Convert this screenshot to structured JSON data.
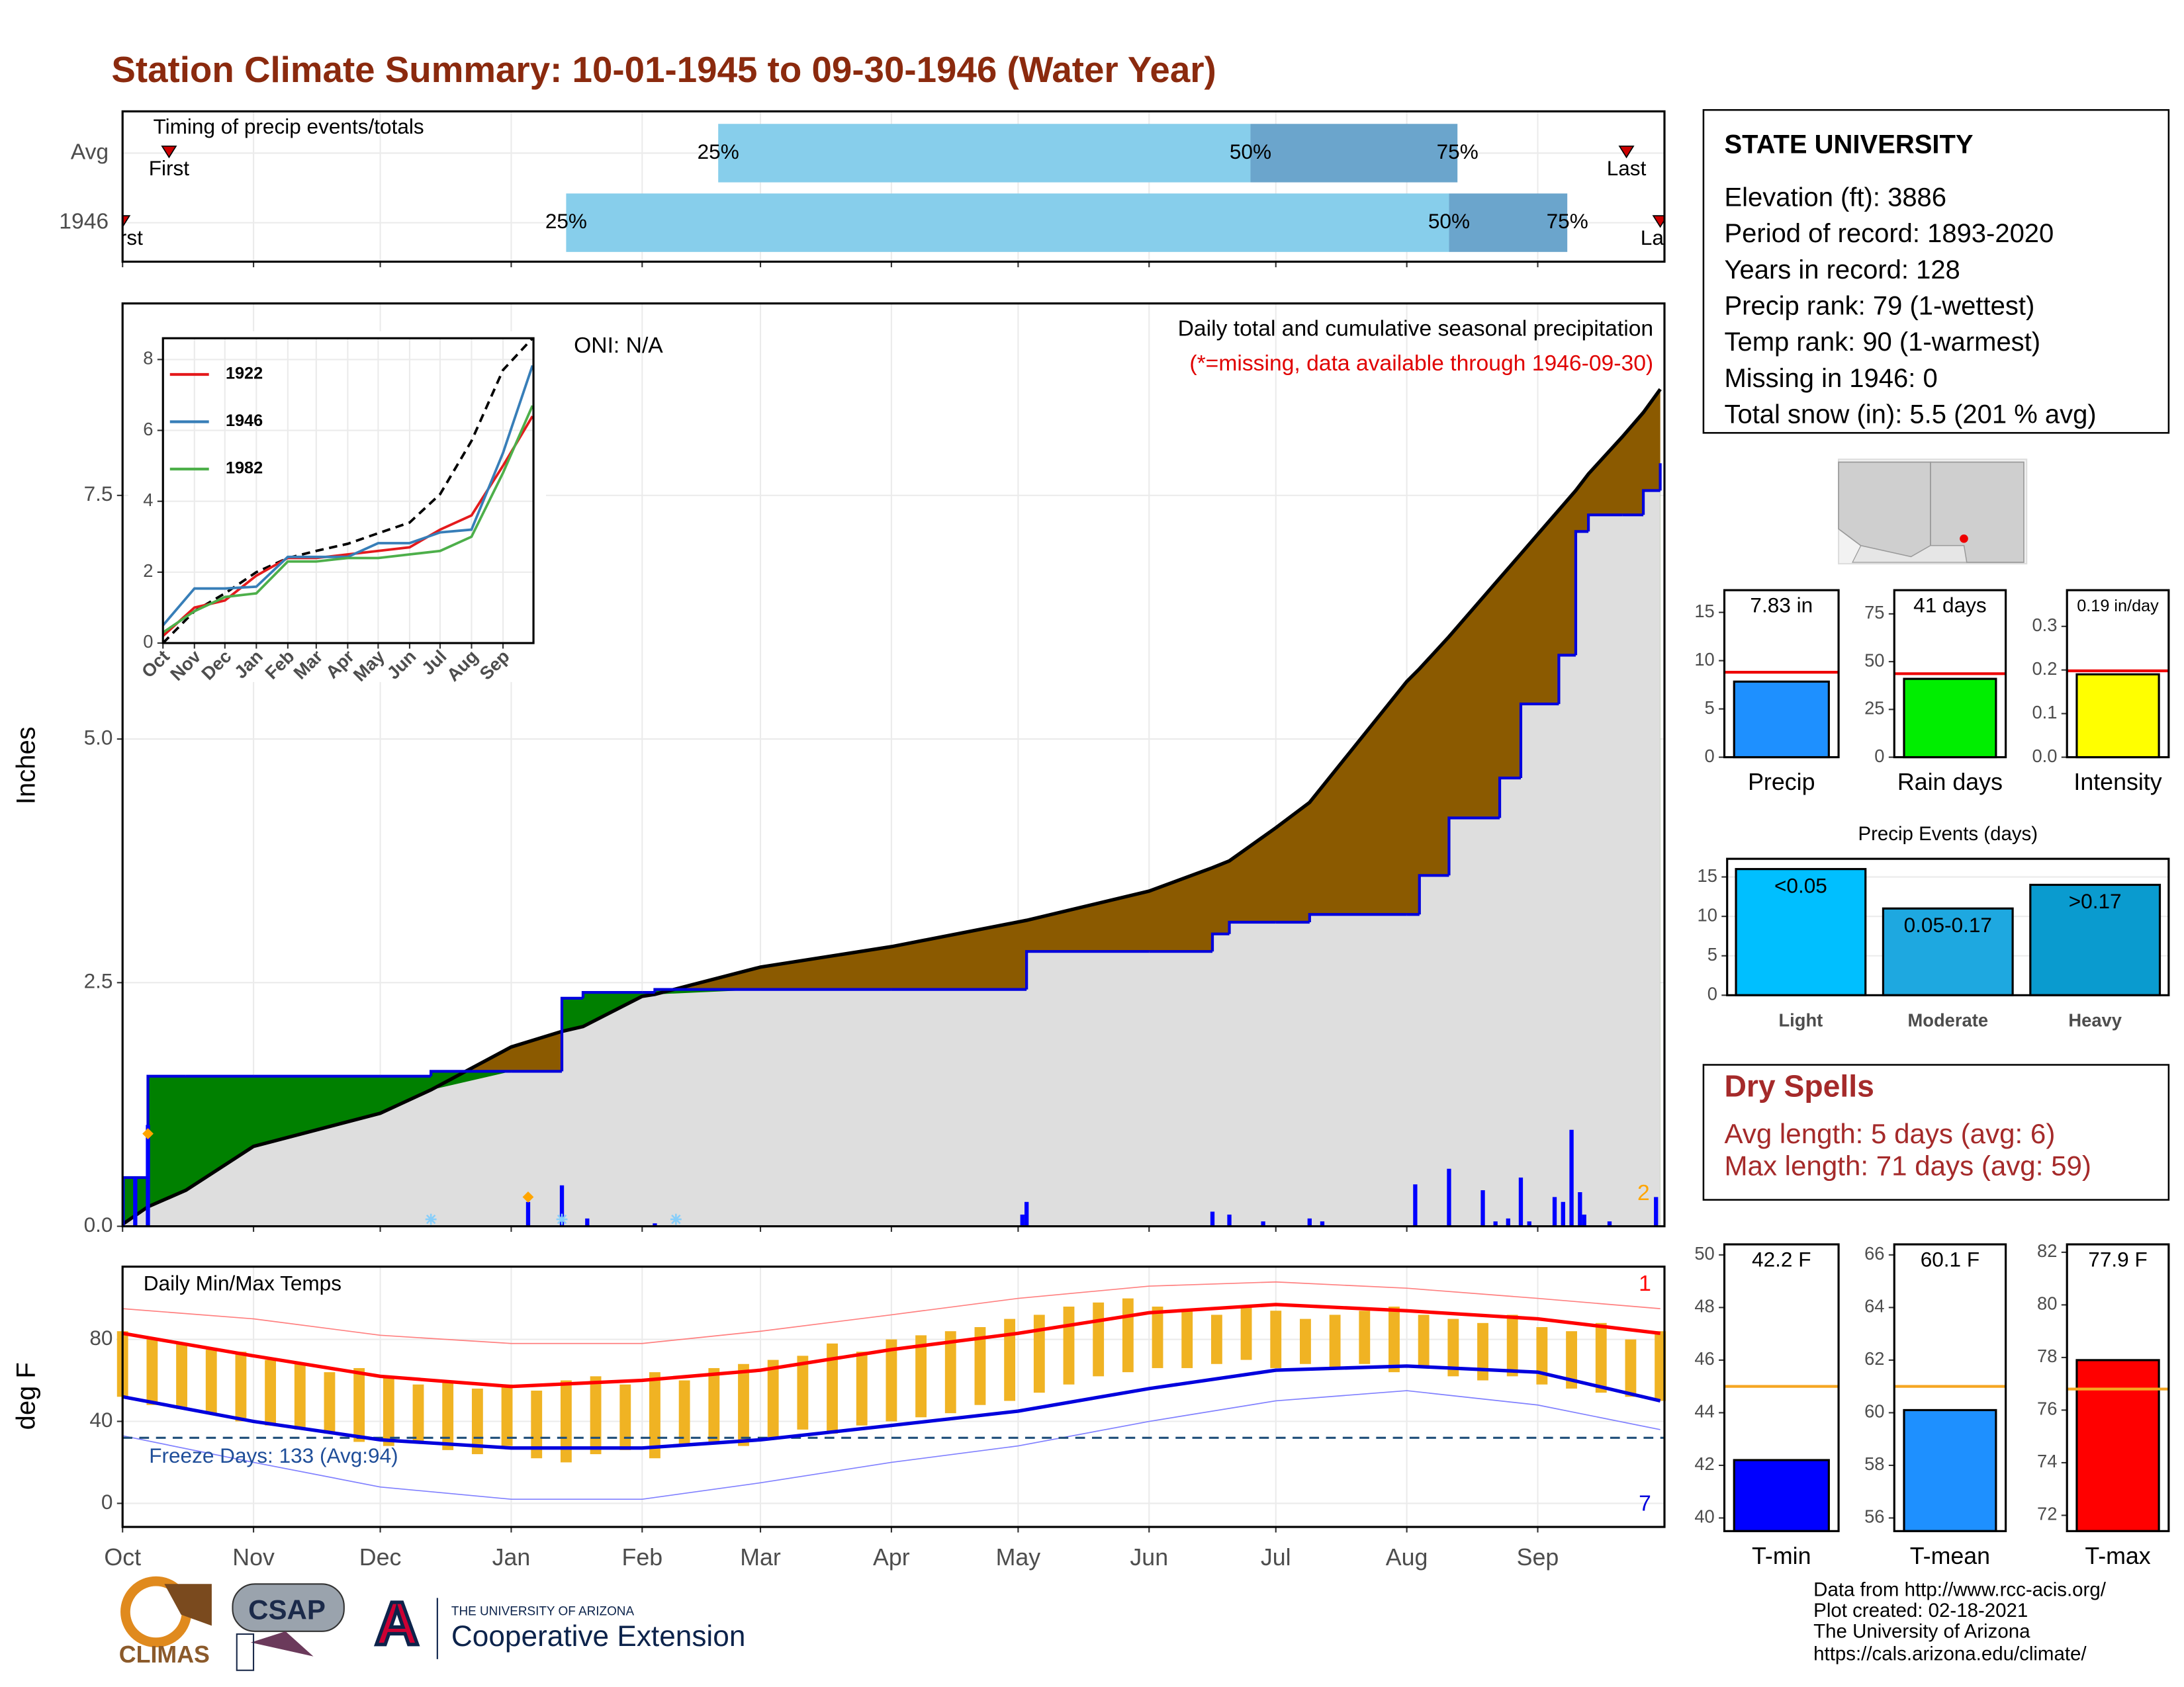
{
  "title": "Station Climate Summary: 10-01-1945 to 09-30-1946 (Water Year)",
  "chart_data": [
    {
      "type": "timing",
      "annotation": "Timing of precip events/totals",
      "xlim": [
        0,
        365
      ],
      "xticks": [
        0,
        31,
        61,
        92,
        123,
        151,
        182,
        212,
        243,
        273,
        304,
        335
      ],
      "point_labels": [
        "First",
        "25%",
        "50%",
        "75%",
        "Last"
      ],
      "colors": [
        "#87ceeb",
        "#6ba5cc"
      ],
      "marker_color": "#cc0000",
      "rows": [
        {
          "name": "Avg",
          "values": [
            11,
            141,
            267,
            316,
            356
          ]
        },
        {
          "name": "1946",
          "values": [
            0,
            105,
            314,
            342,
            364
          ]
        }
      ]
    },
    {
      "type": "cumulative",
      "ylabel": "Inches",
      "annotations": [
        "ONI: N/A",
        "Daily total and cumulative seasonal precipitation",
        "(*=missing, data available through 1946-09-30)",
        "2"
      ],
      "xlim": [
        0,
        365
      ],
      "ylim": [
        0,
        9.47
      ],
      "xticks": [
        0,
        31,
        61,
        92,
        123,
        151,
        182,
        212,
        243,
        273,
        304,
        335
      ],
      "yticks": [
        {
          "value": 0,
          "label": "0.0"
        },
        {
          "value": 2.5,
          "label": "2.5"
        },
        {
          "value": 5,
          "label": "5.0"
        },
        {
          "value": 7.5,
          "label": "7.5"
        }
      ],
      "grid": true,
      "x": [
        0,
        6,
        15,
        31,
        61,
        73,
        92,
        104,
        109,
        123,
        126,
        151,
        182,
        214,
        243,
        258,
        262,
        273,
        281,
        304,
        307,
        314,
        326,
        331,
        335,
        340,
        344,
        347,
        355,
        360,
        364
      ],
      "series": [
        {
          "color": "#000000",
          "values": [
            0.02,
            0.2,
            0.37,
            0.82,
            1.16,
            1.4,
            1.84,
            2.0,
            2.05,
            2.36,
            2.38,
            2.66,
            2.87,
            3.14,
            3.44,
            3.68,
            3.75,
            4.09,
            4.35,
            5.59,
            5.72,
            6.05,
            6.65,
            6.9,
            7.1,
            7.35,
            7.55,
            7.72,
            8.1,
            8.35,
            8.59
          ]
        },
        {
          "color": "#0000dd",
          "values": [
            0.5,
            1.54,
            1.54,
            1.54,
            1.54,
            1.59,
            1.59,
            2.34,
            2.4,
            2.4,
            2.43,
            2.43,
            2.43,
            2.82,
            2.82,
            3.0,
            3.12,
            3.12,
            3.2,
            3.2,
            3.6,
            4.19,
            4.6,
            5.36,
            5.36,
            5.86,
            7.13,
            7.3,
            7.3,
            7.55,
            7.83
          ]
        }
      ],
      "fill_colors": [
        "#8b5a00",
        "#008000",
        "#dedede"
      ],
      "daily": {
        "color": "#0000ff",
        "x": [
          0,
          3,
          6,
          96,
          104,
          110,
          126,
          213,
          214,
          258,
          262,
          270,
          281,
          284,
          306,
          314,
          322,
          325,
          328,
          331,
          333,
          339,
          341,
          343,
          345,
          346,
          352,
          363
        ],
        "values": [
          0.5,
          0.5,
          1.04,
          0.25,
          0.42,
          0.08,
          0.03,
          0.12,
          0.25,
          0.15,
          0.12,
          0.05,
          0.08,
          0.05,
          0.43,
          0.59,
          0.37,
          0.05,
          0.08,
          0.5,
          0.05,
          0.3,
          0.25,
          0.99,
          0.35,
          0.12,
          0.05,
          0.3
        ]
      },
      "snow_days": [
        73,
        104,
        131
      ],
      "snow_color": "#87cefa",
      "extremes": {
        "color": "#ffa500",
        "x": [
          6,
          96
        ],
        "values": [
          0.95,
          0.3
        ]
      }
    },
    {
      "type": "inset",
      "xlim": [
        0,
        365
      ],
      "ylim": [
        0,
        8.6
      ],
      "xticks": [
        {
          "value": 0,
          "label": "Oct"
        },
        {
          "value": 31,
          "label": "Nov"
        },
        {
          "value": 61,
          "label": "Dec"
        },
        {
          "value": 92,
          "label": "Jan"
        },
        {
          "value": 123,
          "label": "Feb"
        },
        {
          "value": 151,
          "label": "Mar"
        },
        {
          "value": 182,
          "label": "Apr"
        },
        {
          "value": 212,
          "label": "May"
        },
        {
          "value": 243,
          "label": "Jun"
        },
        {
          "value": 273,
          "label": "Jul"
        },
        {
          "value": 304,
          "label": "Aug"
        },
        {
          "value": 335,
          "label": "Sep"
        }
      ],
      "yticks": [
        0,
        2,
        4,
        6,
        8
      ],
      "grid": true,
      "x": [
        0,
        31,
        61,
        92,
        123,
        151,
        182,
        212,
        243,
        273,
        304,
        335,
        364
      ],
      "average": {
        "color": "#000000",
        "values": [
          0,
          0.9,
          1.4,
          2.0,
          2.4,
          2.6,
          2.8,
          3.1,
          3.4,
          4.2,
          5.7,
          7.7,
          8.6
        ]
      },
      "series": [
        {
          "name": "1922",
          "color": "#e41a1c",
          "values": [
            0.2,
            1.0,
            1.2,
            1.9,
            2.4,
            2.4,
            2.5,
            2.6,
            2.7,
            3.2,
            3.6,
            5.0,
            6.4
          ]
        },
        {
          "name": "1946",
          "color": "#377eb8",
          "values": [
            0.5,
            1.54,
            1.54,
            1.59,
            2.43,
            2.43,
            2.43,
            2.82,
            2.82,
            3.12,
            3.2,
            5.36,
            7.83
          ]
        },
        {
          "name": "1982",
          "color": "#4daf4a",
          "values": [
            0.3,
            0.9,
            1.3,
            1.4,
            2.3,
            2.3,
            2.4,
            2.4,
            2.5,
            2.6,
            3.0,
            4.8,
            6.7
          ]
        }
      ]
    },
    {
      "type": "temps",
      "ylabel": "deg F",
      "annotation": "Daily Min/Max Temps",
      "freeze_label": "Freeze Days: 133 (Avg:94)",
      "freeze_line": 32,
      "record_labels": [
        "1",
        "7"
      ],
      "xlim": [
        0,
        365
      ],
      "ylim": [
        -11.5,
        115.5
      ],
      "xticks": [
        {
          "value": 0,
          "label": "Oct"
        },
        {
          "value": 31,
          "label": "Nov"
        },
        {
          "value": 61,
          "label": "Dec"
        },
        {
          "value": 92,
          "label": "Jan"
        },
        {
          "value": 123,
          "label": "Feb"
        },
        {
          "value": 151,
          "label": "Mar"
        },
        {
          "value": 182,
          "label": "Apr"
        },
        {
          "value": 212,
          "label": "May"
        },
        {
          "value": 243,
          "label": "Jun"
        },
        {
          "value": 273,
          "label": "Jul"
        },
        {
          "value": 304,
          "label": "Aug"
        },
        {
          "value": 335,
          "label": "Sep"
        }
      ],
      "yticks": [
        0,
        40,
        80
      ],
      "grid": true,
      "x": [
        0,
        31,
        61,
        92,
        123,
        151,
        182,
        212,
        243,
        273,
        304,
        335,
        364
      ],
      "series": [
        {
          "color": "#ff0000",
          "width": 2.5,
          "values": [
            83,
            72,
            62,
            57,
            60,
            65,
            75,
            83,
            93,
            97,
            94,
            90,
            83
          ]
        },
        {
          "color": "#0000dd",
          "width": 2.5,
          "values": [
            52,
            40,
            31,
            27,
            27,
            31,
            38,
            45,
            56,
            65,
            67,
            64,
            50
          ]
        },
        {
          "color": "#ff8080",
          "width": 0.8,
          "values": [
            95,
            90,
            82,
            78,
            78,
            84,
            92,
            100,
            106,
            108,
            105,
            100,
            95
          ]
        },
        {
          "color": "#8080ff",
          "width": 0.8,
          "values": [
            33,
            20,
            8,
            2,
            2,
            10,
            20,
            28,
            40,
            50,
            55,
            48,
            36
          ]
        }
      ],
      "daily": {
        "color": "#f0b323",
        "x": [
          0,
          7,
          14,
          21,
          28,
          35,
          42,
          49,
          56,
          63,
          70,
          77,
          84,
          91,
          98,
          105,
          112,
          119,
          126,
          133,
          140,
          147,
          154,
          161,
          168,
          175,
          182,
          189,
          196,
          203,
          210,
          217,
          224,
          231,
          238,
          245,
          252,
          259,
          266,
          273,
          280,
          287,
          294,
          301,
          308,
          315,
          322,
          329,
          336,
          343,
          350,
          357,
          364
        ],
        "max": [
          84,
          80,
          78,
          75,
          74,
          70,
          68,
          64,
          66,
          62,
          58,
          60,
          56,
          58,
          55,
          60,
          62,
          58,
          64,
          60,
          66,
          68,
          70,
          72,
          78,
          74,
          80,
          82,
          84,
          86,
          90,
          92,
          96,
          98,
          100,
          96,
          94,
          92,
          96,
          94,
          90,
          92,
          94,
          96,
          92,
          90,
          88,
          92,
          86,
          84,
          88,
          80,
          84
        ],
        "min": [
          52,
          48,
          46,
          44,
          40,
          38,
          36,
          34,
          30,
          28,
          30,
          26,
          24,
          28,
          22,
          20,
          24,
          26,
          22,
          28,
          30,
          28,
          32,
          36,
          34,
          38,
          40,
          42,
          44,
          48,
          50,
          54,
          58,
          62,
          64,
          66,
          66,
          68,
          70,
          66,
          68,
          66,
          68,
          64,
          66,
          62,
          60,
          62,
          58,
          56,
          54,
          52,
          50
        ]
      }
    },
    {
      "type": "stat_bar",
      "label": "Precip",
      "ylim": [
        0,
        17.3
      ],
      "yticks": [
        0,
        5,
        10,
        15
      ],
      "value": 7.83,
      "value_label": "7.83 in",
      "average": 8.8,
      "color": "#1e90ff",
      "average_color": "#ee0000"
    },
    {
      "type": "stat_bar",
      "label": "Rain days",
      "ylim": [
        0,
        87.4
      ],
      "yticks": [
        0,
        25,
        50,
        75
      ],
      "value": 41,
      "value_label": "41 days",
      "average": 43.7,
      "color": "#00ee00",
      "average_color": "#ee0000"
    },
    {
      "type": "stat_bar",
      "label": "Intensity",
      "ylim": [
        0,
        0.383
      ],
      "yticks": [
        {
          "value": 0,
          "label": "0.0"
        },
        0.1,
        0.2,
        0.3
      ],
      "value": 0.19,
      "value_label": "0.19 in/day",
      "average": 0.198,
      "color": "#ffff00",
      "average_color": "#ee0000"
    },
    {
      "type": "bar",
      "title": "Precip Events (days)",
      "categories": [
        "Light",
        "Moderate",
        "Heavy"
      ],
      "values": [
        16,
        11,
        14
      ],
      "bar_labels": [
        "<0.05",
        "0.05-0.17",
        ">0.17"
      ],
      "colors": [
        "#00bfff",
        "#1ea8e0",
        "#0a9bcf"
      ],
      "ylim": [
        0,
        17.3
      ],
      "yticks": [
        0,
        5,
        10,
        15
      ],
      "grid": true
    },
    {
      "type": "stat_bar",
      "label": "T-min",
      "ylim": [
        39.5,
        50.4
      ],
      "yticks": [
        40,
        42,
        44,
        46,
        48,
        50
      ],
      "value": 42.2,
      "value_label": "42.2 F",
      "average": 45,
      "color": "#0000ff",
      "average_color": "#f5a623"
    },
    {
      "type": "stat_bar",
      "label": "T-mean",
      "ylim": [
        55.5,
        66.4
      ],
      "yticks": [
        56,
        58,
        60,
        62,
        64,
        66
      ],
      "value": 60.1,
      "value_label": "60.1 F",
      "average": 61,
      "color": "#1e90ff",
      "average_color": "#f5a623"
    },
    {
      "type": "stat_bar",
      "label": "T-max",
      "ylim": [
        71.4,
        82.3
      ],
      "yticks": [
        72,
        74,
        76,
        78,
        80,
        82
      ],
      "value": 77.9,
      "value_label": "77.9 F",
      "average": 76.8,
      "color": "#ff0000",
      "average_color": "#f5a623"
    }
  ],
  "station": {
    "name": "STATE UNIVERSITY",
    "lines": [
      "Elevation (ft): 3886",
      "Period of record: 1893-2020",
      "Years in record: 128",
      "Precip rank: 79 (1-wettest)",
      "Temp rank: 90 (1-warmest)",
      "Missing in 1946: 0",
      "Total snow (in): 5.5 (201 % avg)"
    ]
  },
  "dry_spells": {
    "title": "Dry Spells",
    "lines": [
      "Avg length: 5 days (avg: 6)",
      "Max length: 71 days (avg: 59)"
    ]
  },
  "footer": [
    "Data from http://www.rcc-acis.org/",
    "Plot created: 02-18-2021",
    "The University of Arizona",
    "https://cals.arizona.edu/climate/"
  ],
  "logos": {
    "climas": "CLIMAS",
    "csap": "CSAP",
    "ua_mark": "A",
    "ua_name": "THE UNIVERSITY OF ARIZONA",
    "extension": "Cooperative Extension"
  }
}
